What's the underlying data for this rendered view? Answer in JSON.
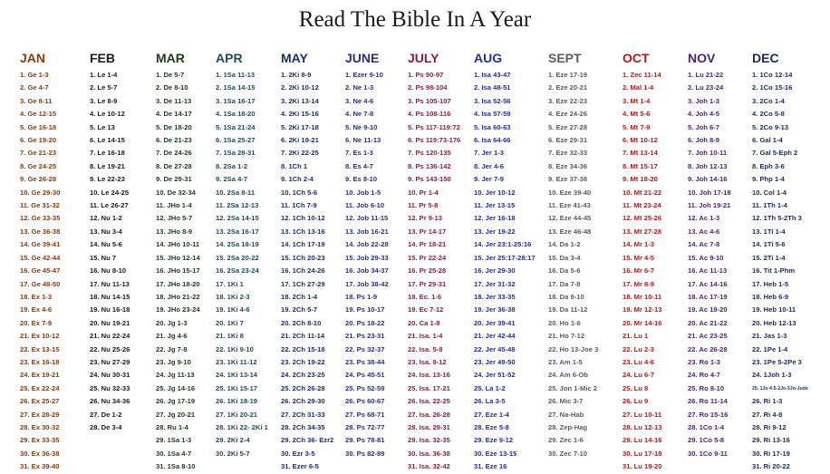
{
  "title": "Read The Bible In A Year",
  "months": [
    {
      "name": "JAN",
      "color": "#8a3a0c",
      "readings": [
        "1. Ge 1-3",
        "2. Ge 4-7",
        "3. Ge 8-11",
        "4. Ge 12-15",
        "5. Ge 16-18",
        "6. Ge 19-20",
        "7. Ge 21-23",
        "8. Ge 24-25",
        "9. Ge 26-28",
        "10. Ge 29-30",
        "11. Ge 31-32",
        "12. Ge 33-35",
        "13. Ge 36-38",
        "14. Ge 39-41",
        "15. Ge 42-44",
        "16. Ge 45-47",
        "17. Ge 48-50",
        "18. Ex 1-3",
        "19. Ex 4-6",
        "20. Ex 7-9",
        "21. Ex 10-12",
        "22. Ex 13-15",
        "23. Ex 16-18",
        "24. Ex 19-21",
        "25. Ex 22-24",
        "26. Ex 25-27",
        "27. Ex 28-29",
        "28. Ex 30-32",
        "29. Ex 33-35",
        "30. Ex 36-38",
        "31. Ex 39-40"
      ]
    },
    {
      "name": "FEB",
      "color": "#1b1b1b",
      "readings": [
        "1. Le 1-4",
        "2. Le 5-7",
        "3. Le 8-9",
        "4. Le 10-12",
        "5. Le 13",
        "6. Le 14-15",
        "7. Le 16-18",
        "8. Le 19-21",
        "9. Le 22-23",
        "10. Le 24-25",
        "11. Le 26-27",
        "12. Nu 1-2",
        "13. Nu 3-4",
        "14. Nu 5-6",
        "15. Nu 7",
        "16. Nu 8-10",
        "17. Nu 11-13",
        "18. Nu 14-15",
        "19. Nu 16-18",
        "20. Nu 19-21",
        "21. Nu 22-24",
        "22. Nu 25-26",
        "23. Nu 27-29",
        "24. Nu 30-31",
        "25. Nu 32-33",
        "26. Nu 34-36",
        "27. De 1-2",
        "28. De 3-4"
      ]
    },
    {
      "name": "MAR",
      "color": "#1c3a1c",
      "readings": [
        "1. De 5-7",
        "2. De 8-10",
        "3. De 11-13",
        "4. De 14-17",
        "5. De 18-20",
        "6. De 21-23",
        "7. De 24-26",
        "8. De 27-28",
        "9. De 29-31",
        "10. De 32-34",
        "11. JHo 1-4",
        "12. JHo 5-7",
        "13. JHo 8-9",
        "14. JHo 10-11",
        "15. JHo 12-14",
        "16. JHo 15-17",
        "17. JHo 18-20",
        "18. JHo 21-22",
        "19. JHo 23-24",
        "20. Jg 1-3",
        "21. Jg 4-6",
        "22. Jg 7-8",
        "23. Jg 9-10",
        "24. Jg 11-13",
        "25. Jg 14-16",
        "26. Jg 17-19",
        "27. Jg 20-21",
        "28. Ru 1-4",
        "29. 1Sa 1-3",
        "30. 1Sa 4-7",
        "31. 1Sa 8-10"
      ]
    },
    {
      "name": "APR",
      "color": "#1e4b5a",
      "readings": [
        "1. 1Sa 11-13",
        "2. 1Sa 14-15",
        "3. 1Sa 16-17",
        "4. 1Sa 18-20",
        "5. 1Sa 21-24",
        "6. 1Sa 25-27",
        "7. 1Sa 28-31",
        "8. 2Sa 1-2",
        "9. 2Sa 4-7",
        "10. 2Sa 8-11",
        "11. 2Sa 12-13",
        "12. 2Sa 14-15",
        "13. 2Sa 16-17",
        "14. 2Sa 18-19",
        "15. 2Sa 20-22",
        "16. 2Sa 23-24",
        "17. 1Ki 1",
        "18. 1Ki 2-3",
        "19. 1Ki 4-6",
        "20. 1Ki 7",
        "21. 1Ki 8",
        "22. 1Ki 9-10",
        "23. 1Ki 11-12",
        "24. 1Ki 13-14",
        "25. 1Ki 15-17",
        "26. 1Ki 18-19",
        "27. 1Ki 20-21",
        "28. 1Ki 22- 2Ki 1",
        "29. 2Ki 2-4",
        "30. 2Ki 5-7"
      ]
    },
    {
      "name": "MAY",
      "color": "#1a2d6e",
      "readings": [
        "1. 2Ki 8-9",
        "2. 2Ki 10-12",
        "3. 2Ki 13-14",
        "4. 2Ki 15-16",
        "5. 2Ki 17-18",
        "6. 2Ki 19-21",
        "7. 2Ki 22-25",
        "8. 1Ch 1",
        "9. 1Ch 2-4",
        "10. 1Ch 5-6",
        "11. 1Ch 7-9",
        "12. 1Ch 10-12",
        "13. 1Ch 13-16",
        "14. 1Ch 17-19",
        "15. 1Ch 20-23",
        "16. 1Ch 24-26",
        "17. 1Ch 27-29",
        "18. 2Ch 1-4",
        "19. 2Ch 5-7",
        "20. 2Ch 8-10",
        "21. 2Ch 11-14",
        "22. 2Ch 15-18",
        "23. 2Ch 19-22",
        "24. 2Ch 23-25",
        "25. 2Ch 26-28",
        "26. 2Ch 29-30",
        "27. 2Ch 31-33",
        "28. 2Ch 34-35",
        "29. 2Ch 36- Ezr2",
        "30. Ezr 3-5",
        "31. Ezer 6-5"
      ]
    },
    {
      "name": "JUNE",
      "color": "#2a2f82",
      "readings": [
        "1. Ezer 9-10",
        "2. Ne 1-3",
        "3. Ne 4-6",
        "4. Ne 7-8",
        "5. Ne 9-10",
        "6. Ne 11-13",
        "7. Es 1-3",
        "8. Es 4-7",
        "9. Es 8-10",
        "10. Job 1-5",
        "11. Job 6-10",
        "12. Job 11-15",
        "13. Job 16-21",
        "14. Job 22-28",
        "15. Job 29-33",
        "16. Job 34-37",
        "17. Job 38-42",
        "18. Ps 1-9",
        "19. Ps 10-17",
        "20. Ps 18-22",
        "21. Ps 23-31",
        "22. Ps 32-37",
        "23. Ps 38-44",
        "24. Ps 45-51",
        "25. Ps 52-59",
        "26. Ps 60-67",
        "27. Ps 68-71",
        "28. Ps 72-77",
        "29. Ps 78-81",
        "30. Ps 82-89"
      ]
    },
    {
      "name": "JULY",
      "color": "#8a1f3a",
      "readings": [
        "1. Ps 90-97",
        "2. Ps 98-104",
        "3. Ps 105-107",
        "4. Ps 108-116",
        "5. Ps 117-119:72",
        "6. Ps 119:73-176",
        "7. Ps 120-135",
        "8. Ps 136-142",
        "9. Ps 143-150",
        "10. Pr 1-4",
        "11. Pr 5-8",
        "12. Pr 9-13",
        "13. Pr 14-17",
        "14. Pr 18-21",
        "15. Pr 22-24",
        "16. Pr 25-28",
        "17. Pr 29-31",
        "18. Ec. 1-6",
        "19. Ec 7-12",
        "20. Ca 1-8",
        "21. Isa. 1-4",
        "22. Isa. 5-8",
        "23. Isa. 9-12",
        "24. Isa. 13-16",
        "25. Isa. 17-21",
        "26. Isa. 22-25",
        "27. Isa. 26-28",
        "28. Isa. 29-31",
        "29. Isa. 32-35",
        "30. Isa. 36-38",
        "31. Isa. 32-42"
      ]
    },
    {
      "name": "AUG",
      "color": "#1f2f9c",
      "readings": [
        "1. Isa 43-47",
        "2. Isa 48-51",
        "3. Isa 52-56",
        "4. Isa 57-59",
        "5. Isa 60-63",
        "6. Isa 64-66",
        "7. Jer 1-3",
        "8. Jer 4-6",
        "9. Jer 7-9",
        "10. Jer 10-12",
        "11. Jer 13-15",
        "12. Jer 16-18",
        "13. Jer 19-22",
        "14. Jer 23:1-25:16",
        "15. Jer 25:17-28:17",
        "16. Jer 29-30",
        "17. Jer 31-32",
        "18. Jer 33-35",
        "19. Jer 36-38",
        "20. Jer 39-41",
        "21. Jer 42-44",
        "22. Jer 45-48",
        "23. Jer 49-50",
        "24. Jer 51-52",
        "25. La 1-2",
        "26. La 3-5",
        "27. Eze 1-4",
        "28. Eze 5-8",
        "29. Eze 9-12",
        "30. Eze 13-15",
        "31. Eze 16"
      ]
    },
    {
      "name": "SEPT",
      "color": "#5a5a66",
      "readings": [
        "1. Eze 17-19",
        "2. Eze 20-21",
        "3. Eze 22-23",
        "4. Eze 24-26",
        "5. Eze 27-28",
        "6. Eze 29-31",
        "7. Eze 32-33",
        "8. Eze 34-36",
        "9. Eze 37-38",
        "10. Eze 39-40",
        "11. Eze 41-43",
        "12. Eze 44-45",
        "13. Eze 46-48",
        "14. Da 1-2",
        "15. Da 3-4",
        "16. Da 5-6",
        "17. Da 7-8",
        "18. Da 9-10",
        "19. Da 11-12",
        "20. Ho 1-6",
        "21. Ho 7-12",
        "22. Ho 13-Joe 3",
        "23. Am 1-5",
        "24. Am 6-Ob",
        "25. Jon 1-Mic 2",
        "26. Mic 3-7",
        "27. Na-Hab",
        "28. Zep-Hag",
        "29. Zec 1-6",
        "30. Zec 7-10"
      ]
    },
    {
      "name": "OCT",
      "color": "#b01a1a",
      "readings": [
        "1. Zec 11-14",
        "2. Mal 1-4",
        "3. Mt 1-4",
        "4. Mt 5-6",
        "5. Mt 7-9",
        "6. Mt 10-12",
        "7. Mt 13-14",
        "8. Mt 15-17",
        "9. Mt 18-20",
        "10. Mt 21-22",
        "11. Mt 23-24",
        "12. Mt 25-26",
        "13. Mt 27-28",
        "14. Mr 1-3",
        "15. Mr 4-5",
        "16. Mr 6-7",
        "17. Mr 8-9",
        "18. Mr 10-11",
        "19. Mr 12-13",
        "20. Mr 14-16",
        "21. Lu 1",
        "22. Lu 2-3",
        "23. Lu 4-6",
        "24. Lu 6-7",
        "25. Lu 8",
        "26. Lu 9",
        "27. Lu 10-11",
        "28. Lu 12-13",
        "29. Lu 14-16",
        "30. Lu 17-18",
        "31. Lu 19-20"
      ]
    },
    {
      "name": "NOV",
      "color": "#4b2470",
      "readings": [
        "1. Lu 21-22",
        "2. Lu 23-24",
        "3. Joh 1-3",
        "4. Joh 4-5",
        "5. Joh 6-7",
        "6. Joh 8-9",
        "7. Joh 10-11",
        "8. Joh 12-13",
        "9. Joh 14-16",
        "10. Joh 17-18",
        "11. Joh 19-21",
        "12. Ac 1-3",
        "13. Ac 4-6",
        "14. Ac 7-8",
        "15. Ac 9-10",
        "16. Ac 11-13",
        "17. Ac 14-16",
        "18. Ac 17-19",
        "19. Ac 19-20",
        "20. Ac 21-22",
        "21. Ac 23-25",
        "22. Ac 26-28",
        "23. Ro 1-3",
        "24. Ro 4-7",
        "25. Ro 8-10",
        "26. Ro 11-14",
        "27. Ro 15-16",
        "28. 1Co 1-4",
        "29. 1Co 5-8",
        "30. 1Co 9-11"
      ]
    },
    {
      "name": "DEC",
      "color": "#1a2a5e",
      "readings": [
        "1. 1Co 12-14",
        "2. 1Co 15-16",
        "3. 2Co 1-4",
        "4. 2Co 5-8",
        "5. 2Co 9-13",
        "6. Gal 1-4",
        "7. Gal 5-Eph 2",
        "8. Eph 3-6",
        "9. Php 1-4",
        "10. Col 1-4",
        "11. 1Th 1-4",
        "12. 1Th 5-2Th 3",
        "13. 1Ti 1-4",
        "14. 1Ti 5-6",
        "15. 2Ti 1-4",
        "16. Tit 1-Phm",
        "17. Heb 1-5",
        "18. Heb 6-9",
        "19. Heb 10-11",
        "20. Heb 12-13",
        "21. Jas 1-3",
        "22. 1Pe 1-4",
        "23. 1Pe 5-2Pe 3",
        "24. 1Joh 1-3",
        "25. 1Jo 4-5-2Jo-3Jo-Jude",
        "26. Ri 1-3",
        "27. Ri 4-8",
        "28. Ri 9-12",
        "29. Ri 13-16",
        "30. Ri 17-19",
        "31. Ri 20-22"
      ]
    }
  ]
}
